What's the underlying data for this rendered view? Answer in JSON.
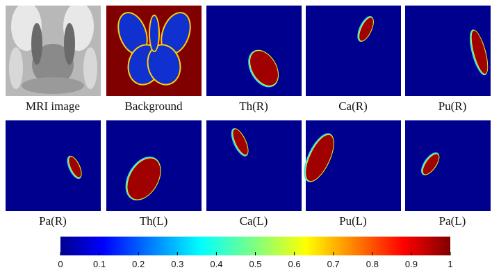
{
  "panels": [
    {
      "label": "MRI image"
    },
    {
      "label": "Background"
    },
    {
      "label": "Th(R)"
    },
    {
      "label": "Ca(R)"
    },
    {
      "label": "Pu(R)"
    },
    {
      "label": "Pa(R)"
    },
    {
      "label": "Th(L)"
    },
    {
      "label": "Ca(L)"
    },
    {
      "label": "Pu(L)"
    },
    {
      "label": "Pa(L)"
    }
  ],
  "colorbar": {
    "lim": [
      0,
      1
    ],
    "ticks": [
      0,
      0.1,
      0.2,
      0.3,
      0.4,
      0.5,
      0.6,
      0.7,
      0.8,
      0.9,
      1
    ]
  }
}
